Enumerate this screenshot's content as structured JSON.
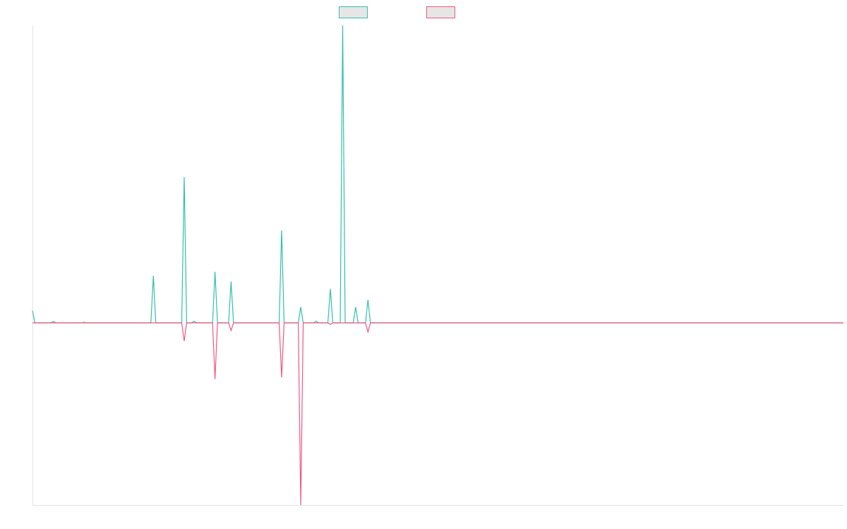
{
  "chart_data": {
    "type": "line",
    "title": "",
    "xlabel": "",
    "ylabel": "",
    "legend": {
      "placement": "top-center",
      "show_labels": false
    },
    "grid": false,
    "x": [
      0,
      1,
      2,
      3,
      4,
      5,
      6,
      7,
      8,
      9,
      10,
      11,
      12,
      13,
      14,
      15,
      16,
      17,
      18,
      19,
      20,
      21,
      22,
      23,
      24,
      25,
      26,
      27,
      28,
      29,
      30,
      31,
      32,
      33,
      34,
      35,
      36,
      37,
      38,
      39,
      40,
      41,
      42,
      43,
      44,
      45,
      46,
      47,
      48,
      49,
      50,
      51,
      52,
      53,
      54,
      55,
      56,
      57,
      58,
      59,
      60,
      61,
      62,
      63,
      64,
      65,
      66,
      67,
      68,
      69,
      70,
      71,
      72,
      73,
      74,
      75,
      76,
      77,
      78,
      79,
      80,
      81,
      82,
      83,
      84,
      85,
      86,
      87,
      88,
      89,
      90,
      91,
      92,
      93,
      94,
      95,
      96,
      97,
      98,
      99,
      100,
      101,
      102,
      103,
      104,
      105,
      106,
      107,
      108,
      109,
      110,
      111,
      112,
      113,
      114,
      115,
      116,
      117,
      118,
      119,
      120,
      121,
      122,
      123,
      124,
      125,
      126,
      127,
      128,
      129,
      130,
      131,
      132,
      133,
      134,
      135,
      136,
      137,
      138,
      139,
      140,
      141,
      142,
      143,
      144,
      145,
      146,
      147,
      148,
      149,
      150,
      151,
      152,
      153,
      154,
      155,
      156,
      157,
      158,
      159,
      160,
      161,
      162,
      163,
      164,
      165,
      166,
      167,
      168,
      169,
      170,
      171,
      172,
      173,
      174,
      175,
      176,
      177,
      178,
      179,
      180,
      181,
      182,
      183,
      184,
      185,
      186,
      187,
      188,
      189,
      190,
      191,
      192,
      193,
      194,
      195,
      196,
      197,
      198,
      199,
      200,
      201,
      202,
      203,
      204,
      205,
      206,
      207,
      208,
      209,
      210,
      211,
      212,
      213,
      214,
      215,
      216,
      217,
      218,
      219,
      220,
      221,
      222,
      223,
      224,
      225,
      226,
      227,
      228,
      229,
      230,
      231,
      232,
      233,
      234,
      235,
      236,
      237,
      238,
      239,
      240,
      241,
      242,
      243,
      244,
      245,
      246,
      247,
      248,
      249,
      250,
      251,
      252,
      253,
      254,
      255,
      256,
      257,
      258,
      259,
      260,
      261,
      262,
      263
    ],
    "xlim": [
      0,
      263
    ],
    "ylim": [
      -6.0,
      9.8
    ],
    "series": [
      {
        "color": "#2fbfb0",
        "points": [
          [
            0,
            0.4
          ],
          [
            0.8,
            0
          ],
          [
            6,
            0
          ],
          [
            6.8,
            0.05
          ],
          [
            7.6,
            0
          ],
          [
            16,
            0
          ],
          [
            16.8,
            0.02
          ],
          [
            17.6,
            0
          ],
          [
            38.4,
            0
          ],
          [
            39.2,
            1.55
          ],
          [
            40,
            0
          ],
          [
            48.4,
            0
          ],
          [
            49.2,
            4.8
          ],
          [
            50,
            0
          ],
          [
            51.6,
            0
          ],
          [
            52.4,
            0.06
          ],
          [
            53.2,
            0
          ],
          [
            58.4,
            0
          ],
          [
            59.2,
            1.68
          ],
          [
            60,
            0
          ],
          [
            63.6,
            0
          ],
          [
            64.4,
            1.36
          ],
          [
            65.2,
            0
          ],
          [
            80,
            0
          ],
          [
            80.8,
            3.05
          ],
          [
            81.6,
            0
          ],
          [
            86.2,
            0
          ],
          [
            87,
            0.52
          ],
          [
            87.8,
            0
          ],
          [
            91.2,
            0
          ],
          [
            92,
            0.06
          ],
          [
            92.8,
            0
          ],
          [
            95.8,
            0
          ],
          [
            96.6,
            1.12
          ],
          [
            97.4,
            0
          ],
          [
            99.8,
            0
          ],
          [
            100.6,
            9.8
          ],
          [
            101.4,
            0
          ],
          [
            104,
            0
          ],
          [
            104.8,
            0.52
          ],
          [
            105.6,
            0
          ],
          [
            108,
            0
          ],
          [
            108.8,
            0.76
          ],
          [
            109.6,
            0
          ],
          [
            263,
            0
          ]
        ]
      },
      {
        "color": "#f0577d",
        "points": [
          [
            0,
            0
          ],
          [
            48.4,
            0
          ],
          [
            49.2,
            -0.6
          ],
          [
            50,
            0
          ],
          [
            58.4,
            0
          ],
          [
            59.2,
            -1.85
          ],
          [
            60,
            0
          ],
          [
            63.6,
            0
          ],
          [
            64.4,
            -0.25
          ],
          [
            65.2,
            0
          ],
          [
            80,
            0
          ],
          [
            80.8,
            -1.8
          ],
          [
            81.6,
            0
          ],
          [
            86.2,
            0
          ],
          [
            87,
            -6.0
          ],
          [
            87.8,
            0
          ],
          [
            95.8,
            0
          ],
          [
            96.6,
            -0.05
          ],
          [
            97.4,
            0
          ],
          [
            108,
            0
          ],
          [
            108.8,
            -0.3
          ],
          [
            109.6,
            0
          ],
          [
            263,
            0
          ]
        ]
      }
    ]
  }
}
